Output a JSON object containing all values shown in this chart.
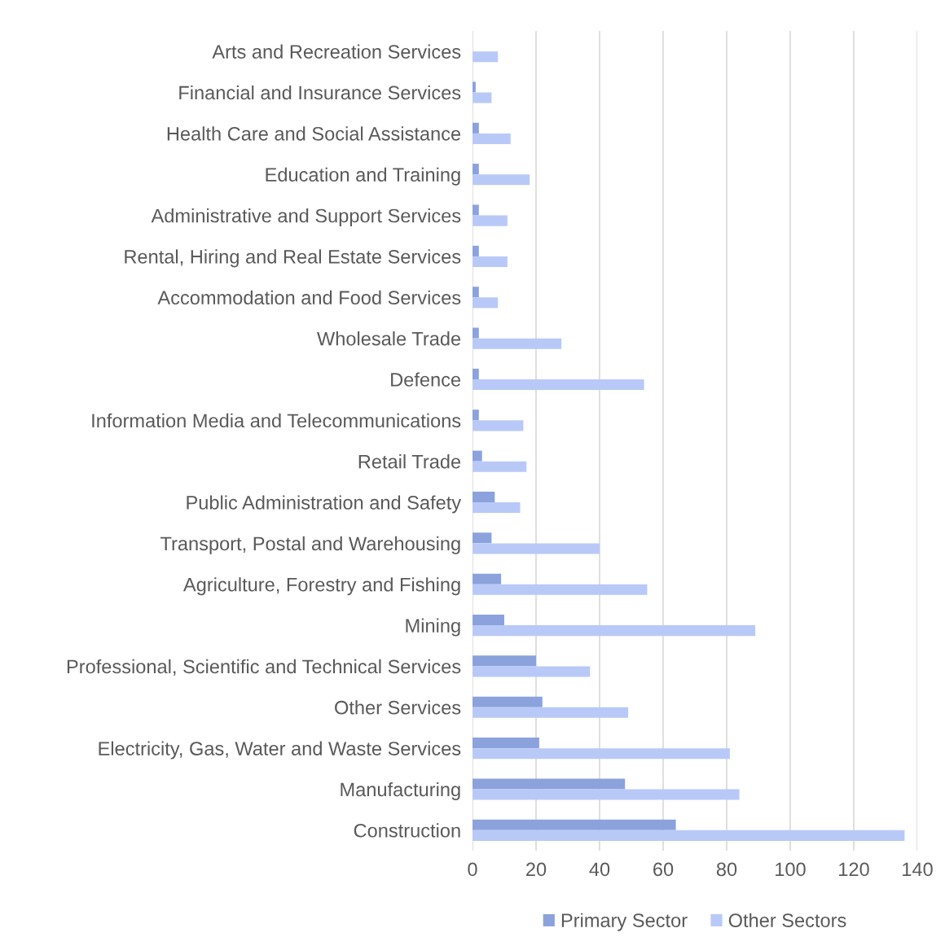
{
  "chart_data": {
    "type": "bar",
    "orientation": "horizontal",
    "categories": [
      "Arts and Recreation Services",
      "Financial and Insurance Services",
      "Health Care and Social Assistance",
      "Education and Training",
      "Administrative and Support Services",
      "Rental, Hiring and Real Estate Services",
      "Accommodation and Food Services",
      "Wholesale Trade",
      "Defence",
      "Information Media and Telecommunications",
      "Retail Trade",
      "Public Administration and Safety",
      "Transport, Postal and Warehousing",
      "Agriculture, Forestry and Fishing",
      "Mining",
      "Professional, Scientific and Technical Services",
      "Other Services",
      "Electricity, Gas, Water and Waste Services",
      "Manufacturing",
      "Construction"
    ],
    "series": [
      {
        "name": "Primary Sector",
        "color": "#8ba2dc",
        "values": [
          0,
          1,
          2,
          2,
          2,
          2,
          2,
          2,
          2,
          2,
          3,
          7,
          6,
          9,
          10,
          20,
          22,
          21,
          48,
          64
        ]
      },
      {
        "name": "Other Sectors",
        "color": "#b9c9f7",
        "values": [
          8,
          6,
          12,
          18,
          11,
          11,
          8,
          28,
          54,
          16,
          17,
          15,
          40,
          55,
          89,
          37,
          49,
          81,
          84,
          136
        ]
      }
    ],
    "xlim": [
      0,
      140
    ],
    "xticks": [
      0,
      20,
      40,
      60,
      80,
      100,
      120,
      140
    ],
    "grid": "x",
    "legend": "bottom"
  }
}
